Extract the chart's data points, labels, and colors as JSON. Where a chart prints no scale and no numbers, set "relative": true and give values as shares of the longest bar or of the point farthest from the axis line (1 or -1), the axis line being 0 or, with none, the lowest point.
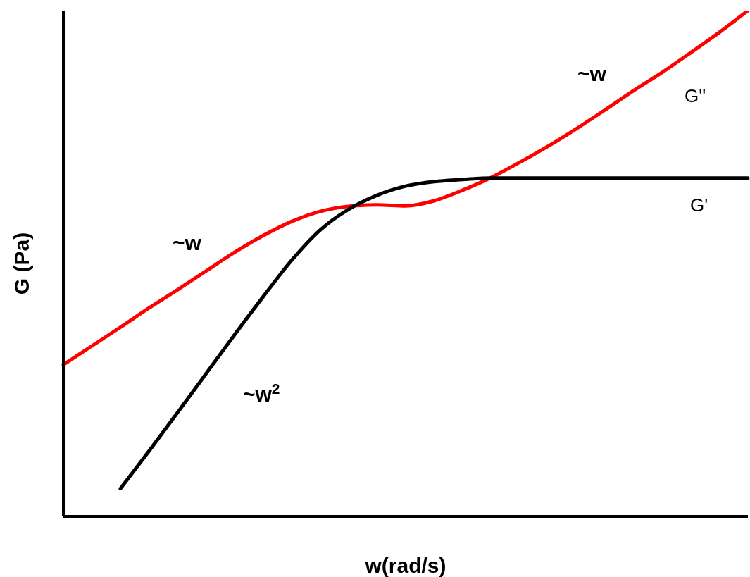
{
  "chart_data": {
    "type": "line",
    "relative": true,
    "xlabel": "w(rad/s)",
    "ylabel": "G (Pa)",
    "marker": "none",
    "line_style": "solid",
    "categories": [
      null,
      null,
      null,
      null,
      null,
      null,
      null,
      null,
      null,
      null,
      null,
      null,
      null,
      null,
      null,
      null,
      null,
      null,
      null,
      null,
      null,
      null,
      null,
      null,
      null
    ],
    "series": [
      {
        "name": "G''",
        "color": "#ff0000",
        "values": [
          0.3,
          0.337,
          0.374,
          0.412,
          0.448,
          0.485,
          0.522,
          0.555,
          0.583,
          0.603,
          0.613,
          0.616,
          0.614,
          0.624,
          0.645,
          0.67,
          0.7,
          0.732,
          0.767,
          0.804,
          0.842,
          0.878,
          0.917,
          0.957,
          1
        ]
      },
      {
        "name": "G'",
        "color": "#000000",
        "values": [
          null,
          null,
          0.055,
          0.129,
          0.205,
          0.282,
          0.359,
          0.434,
          0.506,
          0.566,
          0.607,
          0.635,
          0.653,
          0.662,
          0.666,
          0.669,
          0.669,
          0.669,
          0.669,
          0.669,
          0.669,
          0.669,
          0.669,
          0.669,
          0.669
        ]
      }
    ],
    "annotations": [
      "~w",
      "~w",
      "~w$^{2}$"
    ]
  }
}
